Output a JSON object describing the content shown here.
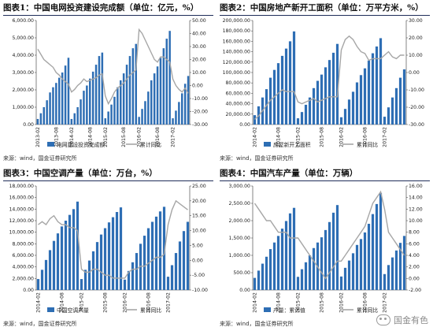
{
  "panels": [
    {
      "title": "图表1：中国电网投资建设完成额（单位：亿元，%）",
      "source": "来源：wind，国金证券研究所"
    },
    {
      "title": "图表2：中国房地产新开工面积（单位：万平方米，%）",
      "source": "来源：wind，国金证券研究所"
    },
    {
      "title": "图表3：中国空调产量（单位：万台，%）",
      "source": "来源：wind，国金证券研究所"
    },
    {
      "title": "图表4：中国汽车产量（单位：万辆）",
      "source": "来源：wind，国金证券研究所"
    }
  ],
  "watermark": {
    "text": "国金有色",
    "icon": "wechat-icon"
  },
  "colors": {
    "bar": "#2e6eb4",
    "line": "#a6a6a6",
    "axis": "#333333",
    "title_rule": "#1f2d5a"
  },
  "chart_data": [
    {
      "type": "bar",
      "x": [
        "2013-02",
        "2013-03",
        "2013-04",
        "2013-05",
        "2013-06",
        "2013-07",
        "2013-08",
        "2013-09",
        "2013-10",
        "2013-11",
        "2013-12",
        "2014-02",
        "2014-03",
        "2014-04",
        "2014-05",
        "2014-06",
        "2014-07",
        "2014-08",
        "2014-09",
        "2014-10",
        "2014-11",
        "2014-12",
        "2015-02",
        "2015-03",
        "2015-04",
        "2015-05",
        "2015-06",
        "2015-07",
        "2015-08",
        "2015-09",
        "2015-10",
        "2015-11",
        "2015-12",
        "2016-02",
        "2016-03",
        "2016-04",
        "2016-05",
        "2016-06",
        "2016-07",
        "2016-08",
        "2016-09",
        "2016-10",
        "2016-11",
        "2016-12",
        "2017-02",
        "2017-03",
        "2017-04",
        "2017-05",
        "2017-06",
        "2017-07"
      ],
      "x_tick_labels": [
        "2013-02",
        "2013-08",
        "2014-02",
        "2014-08",
        "2015-02",
        "2015-08",
        "2016-02",
        "2016-08",
        "2017-02"
      ],
      "series": [
        {
          "name": "电网建设投资完成额",
          "axis": "left",
          "kind": "bar",
          "values": [
            320,
            650,
            1000,
            1400,
            1850,
            2150,
            2400,
            2700,
            3000,
            3400,
            3850,
            320,
            650,
            1000,
            1450,
            1950,
            2250,
            2650,
            3050,
            3450,
            3950,
            4150,
            360,
            750,
            1150,
            1600,
            2150,
            2550,
            2950,
            3450,
            3950,
            4400,
            4650,
            440,
            900,
            1350,
            1900,
            2550,
            2950,
            3350,
            3850,
            4400,
            4950,
            5400,
            360,
            800,
            1300,
            1800,
            2350,
            2800
          ]
        },
        {
          "name": "累计同比",
          "axis": "right",
          "kind": "line",
          "values": [
            28,
            24,
            20,
            18,
            16,
            14,
            10,
            8,
            5,
            3,
            1,
            -5,
            -3,
            0,
            2,
            5,
            3,
            4,
            5,
            6,
            8,
            9,
            -8,
            -14,
            -10,
            -5,
            -2,
            0,
            2,
            5,
            8,
            10,
            12,
            43,
            40,
            35,
            30,
            25,
            20,
            18,
            22,
            22,
            20,
            18,
            5,
            0,
            -3,
            -5,
            -2,
            -6
          ]
        }
      ],
      "y_left": {
        "ticks": [
          "0.00",
          "1,000.00",
          "2,000.00",
          "3,000.00",
          "4,000.00",
          "5,000.00",
          "6,000.00"
        ],
        "lim": [
          0,
          6000
        ]
      },
      "y_right": {
        "ticks": [
          "-30.00",
          "-20.00",
          "-10.00",
          "0.00",
          "10.00",
          "20.00",
          "30.00",
          "40.00",
          "50.00"
        ],
        "lim": [
          -30,
          50
        ]
      },
      "legend": {
        "placement": "bottom"
      }
    },
    {
      "type": "bar",
      "x": [
        "2014-02",
        "2014-03",
        "2014-04",
        "2014-05",
        "2014-06",
        "2014-07",
        "2014-08",
        "2014-09",
        "2014-10",
        "2014-11",
        "2014-12",
        "2015-02",
        "2015-03",
        "2015-04",
        "2015-05",
        "2015-06",
        "2015-07",
        "2015-08",
        "2015-09",
        "2015-10",
        "2015-11",
        "2015-12",
        "2016-02",
        "2016-03",
        "2016-04",
        "2016-05",
        "2016-06",
        "2016-07",
        "2016-08",
        "2016-09",
        "2016-10",
        "2016-11",
        "2016-12",
        "2017-02",
        "2017-03",
        "2017-04",
        "2017-05",
        "2017-06",
        "2017-07"
      ],
      "x_tick_labels": [
        "2014-02",
        "2014-08",
        "2015-02",
        "2015-08",
        "2016-02",
        "2016-08",
        "2017-02"
      ],
      "series": [
        {
          "name": "房屋新开工面积",
          "axis": "left",
          "kind": "bar",
          "values": [
            18000,
            35000,
            52000,
            68000,
            90000,
            105000,
            118000,
            132000,
            146000,
            160000,
            179000,
            12000,
            24000,
            38000,
            52000,
            70000,
            84000,
            96000,
            110000,
            124000,
            138000,
            155000,
            14000,
            30000,
            48000,
            63000,
            81000,
            95000,
            108000,
            123000,
            137000,
            150000,
            166000,
            15000,
            33000,
            52000,
            70000,
            90000,
            106000
          ]
        },
        {
          "name": "累计同比",
          "axis": "right",
          "kind": "line",
          "values": [
            -27,
            -25,
            -22,
            -19,
            -16,
            -14,
            -12,
            -10,
            -11,
            -11,
            -11,
            -17,
            -18,
            -17,
            -16,
            -15,
            -17,
            -16,
            -15,
            -14,
            -14,
            -14,
            13,
            19,
            21,
            19,
            15,
            12,
            11,
            7,
            8,
            8,
            8,
            10,
            12,
            9,
            8,
            10,
            10
          ]
        }
      ],
      "y_left": {
        "ticks": [
          "0.00",
          "20,000.00",
          "40,000.00",
          "60,000.00",
          "80,000.00",
          "100,000.00",
          "120,000.00",
          "140,000.00",
          "160,000.00",
          "180,000.00",
          "200,000.00"
        ],
        "lim": [
          0,
          200000
        ]
      },
      "y_right": {
        "ticks": [
          "-30.00",
          "-20.00",
          "-10.00",
          "0.00",
          "10.00",
          "20.00",
          "30.00"
        ],
        "lim": [
          -30,
          30
        ]
      },
      "legend": {
        "placement": "bottom"
      }
    },
    {
      "type": "bar",
      "x": [
        "2014-02",
        "2014-03",
        "2014-04",
        "2014-05",
        "2014-06",
        "2014-07",
        "2014-08",
        "2014-09",
        "2014-10",
        "2014-11",
        "2014-12",
        "2015-02",
        "2015-03",
        "2015-04",
        "2015-05",
        "2015-06",
        "2015-07",
        "2015-08",
        "2015-09",
        "2015-10",
        "2015-11",
        "2015-12",
        "2016-02",
        "2016-03",
        "2016-04",
        "2016-05",
        "2016-06",
        "2016-07",
        "2016-08",
        "2016-09",
        "2016-10",
        "2016-11",
        "2016-12",
        "2017-02",
        "2017-03",
        "2017-04",
        "2017-05",
        "2017-06",
        "2017-07"
      ],
      "x_tick_labels": [
        "2014-02",
        "2014-08",
        "2015-02",
        "2015-08",
        "2016-02",
        "2016-08",
        "2017-02"
      ],
      "series": [
        {
          "name": "中国空调产量",
          "axis": "left",
          "kind": "bar",
          "values": [
            1900,
            3500,
            5200,
            6900,
            8500,
            9800,
            11000,
            12000,
            13000,
            14000,
            15300,
            1900,
            3500,
            5100,
            6700,
            8300,
            9600,
            10700,
            11700,
            12600,
            13500,
            14300,
            1800,
            3300,
            4800,
            6400,
            8000,
            9400,
            10700,
            11800,
            12700,
            13600,
            14400,
            2300,
            4300,
            6400,
            8400,
            10200,
            11800
          ]
        },
        {
          "name": "累计同比",
          "axis": "right",
          "kind": "line",
          "values": [
            12,
            13,
            12,
            14,
            15,
            13,
            12,
            12,
            11,
            11,
            10,
            -3,
            -4,
            -4,
            -3,
            -3,
            -4,
            -5,
            -5,
            -6,
            -6,
            -6,
            -6,
            -4,
            -3,
            -3,
            -2,
            -2,
            -1,
            0,
            1,
            1,
            2,
            12,
            17,
            20,
            19,
            18,
            17
          ]
        }
      ],
      "y_left": {
        "ticks": [
          "0.00",
          "2,000.00",
          "4,000.00",
          "6,000.00",
          "8,000.00",
          "10,000.00",
          "12,000.00",
          "14,000.00",
          "16,000.00",
          "18,000.00"
        ],
        "lim": [
          0,
          18000
        ]
      },
      "y_right": {
        "ticks": [
          "-10.00",
          "-5.00",
          "0.00",
          "5.00",
          "10.00",
          "15.00",
          "20.00",
          "25.00"
        ],
        "lim": [
          -10,
          25
        ]
      },
      "legend": {
        "placement": "bottom"
      }
    },
    {
      "type": "bar",
      "x": [
        "2014-02",
        "2014-03",
        "2014-04",
        "2014-05",
        "2014-06",
        "2014-07",
        "2014-08",
        "2014-09",
        "2014-10",
        "2014-11",
        "2014-12",
        "2015-02",
        "2015-03",
        "2015-04",
        "2015-05",
        "2015-06",
        "2015-07",
        "2015-08",
        "2015-09",
        "2015-10",
        "2015-11",
        "2015-12",
        "2016-02",
        "2016-03",
        "2016-04",
        "2016-05",
        "2016-06",
        "2016-07",
        "2016-08",
        "2016-09",
        "2016-10",
        "2016-11",
        "2016-12",
        "2017-02",
        "2017-03",
        "2017-04",
        "2017-05",
        "2017-06",
        "2017-07"
      ],
      "x_tick_labels": [
        "2014-02",
        "2014-08",
        "2015-02",
        "2015-08",
        "2016-02",
        "2016-08",
        "2017-02"
      ],
      "series": [
        {
          "name": "产量：累计值",
          "axis": "left",
          "kind": "bar",
          "values": [
            350,
            560,
            760,
            960,
            1180,
            1370,
            1560,
            1770,
            1990,
            2210,
            2370,
            380,
            600,
            800,
            1000,
            1210,
            1370,
            1520,
            1730,
            1960,
            2230,
            2450,
            390,
            640,
            850,
            1060,
            1300,
            1470,
            1660,
            1910,
            2190,
            2480,
            2800,
            460,
            720,
            940,
            1140,
            1360,
            1560
          ]
        },
        {
          "name": "累计同比",
          "axis": "right",
          "kind": "line",
          "values": [
            13,
            12,
            11,
            10,
            10,
            9,
            8,
            8,
            8,
            7,
            7,
            7,
            6,
            5,
            4,
            3,
            2,
            1,
            0,
            1,
            2,
            3,
            3,
            4,
            5,
            6,
            7,
            8,
            9,
            11,
            13,
            14,
            15,
            12,
            8,
            7,
            6,
            5,
            4
          ]
        }
      ],
      "y_left": {
        "ticks": [
          "0.00",
          "500.00",
          "1,000.00",
          "1,500.00",
          "2,000.00",
          "2,500.00",
          "3,000.00"
        ],
        "lim": [
          0,
          3000
        ]
      },
      "y_right": {
        "ticks": [
          "-2.00",
          "0.00",
          "2.00",
          "4.00",
          "6.00",
          "8.00",
          "10.00",
          "12.00",
          "14.00",
          "16.00"
        ],
        "lim": [
          -2,
          16
        ]
      },
      "legend": {
        "placement": "bottom"
      }
    }
  ]
}
